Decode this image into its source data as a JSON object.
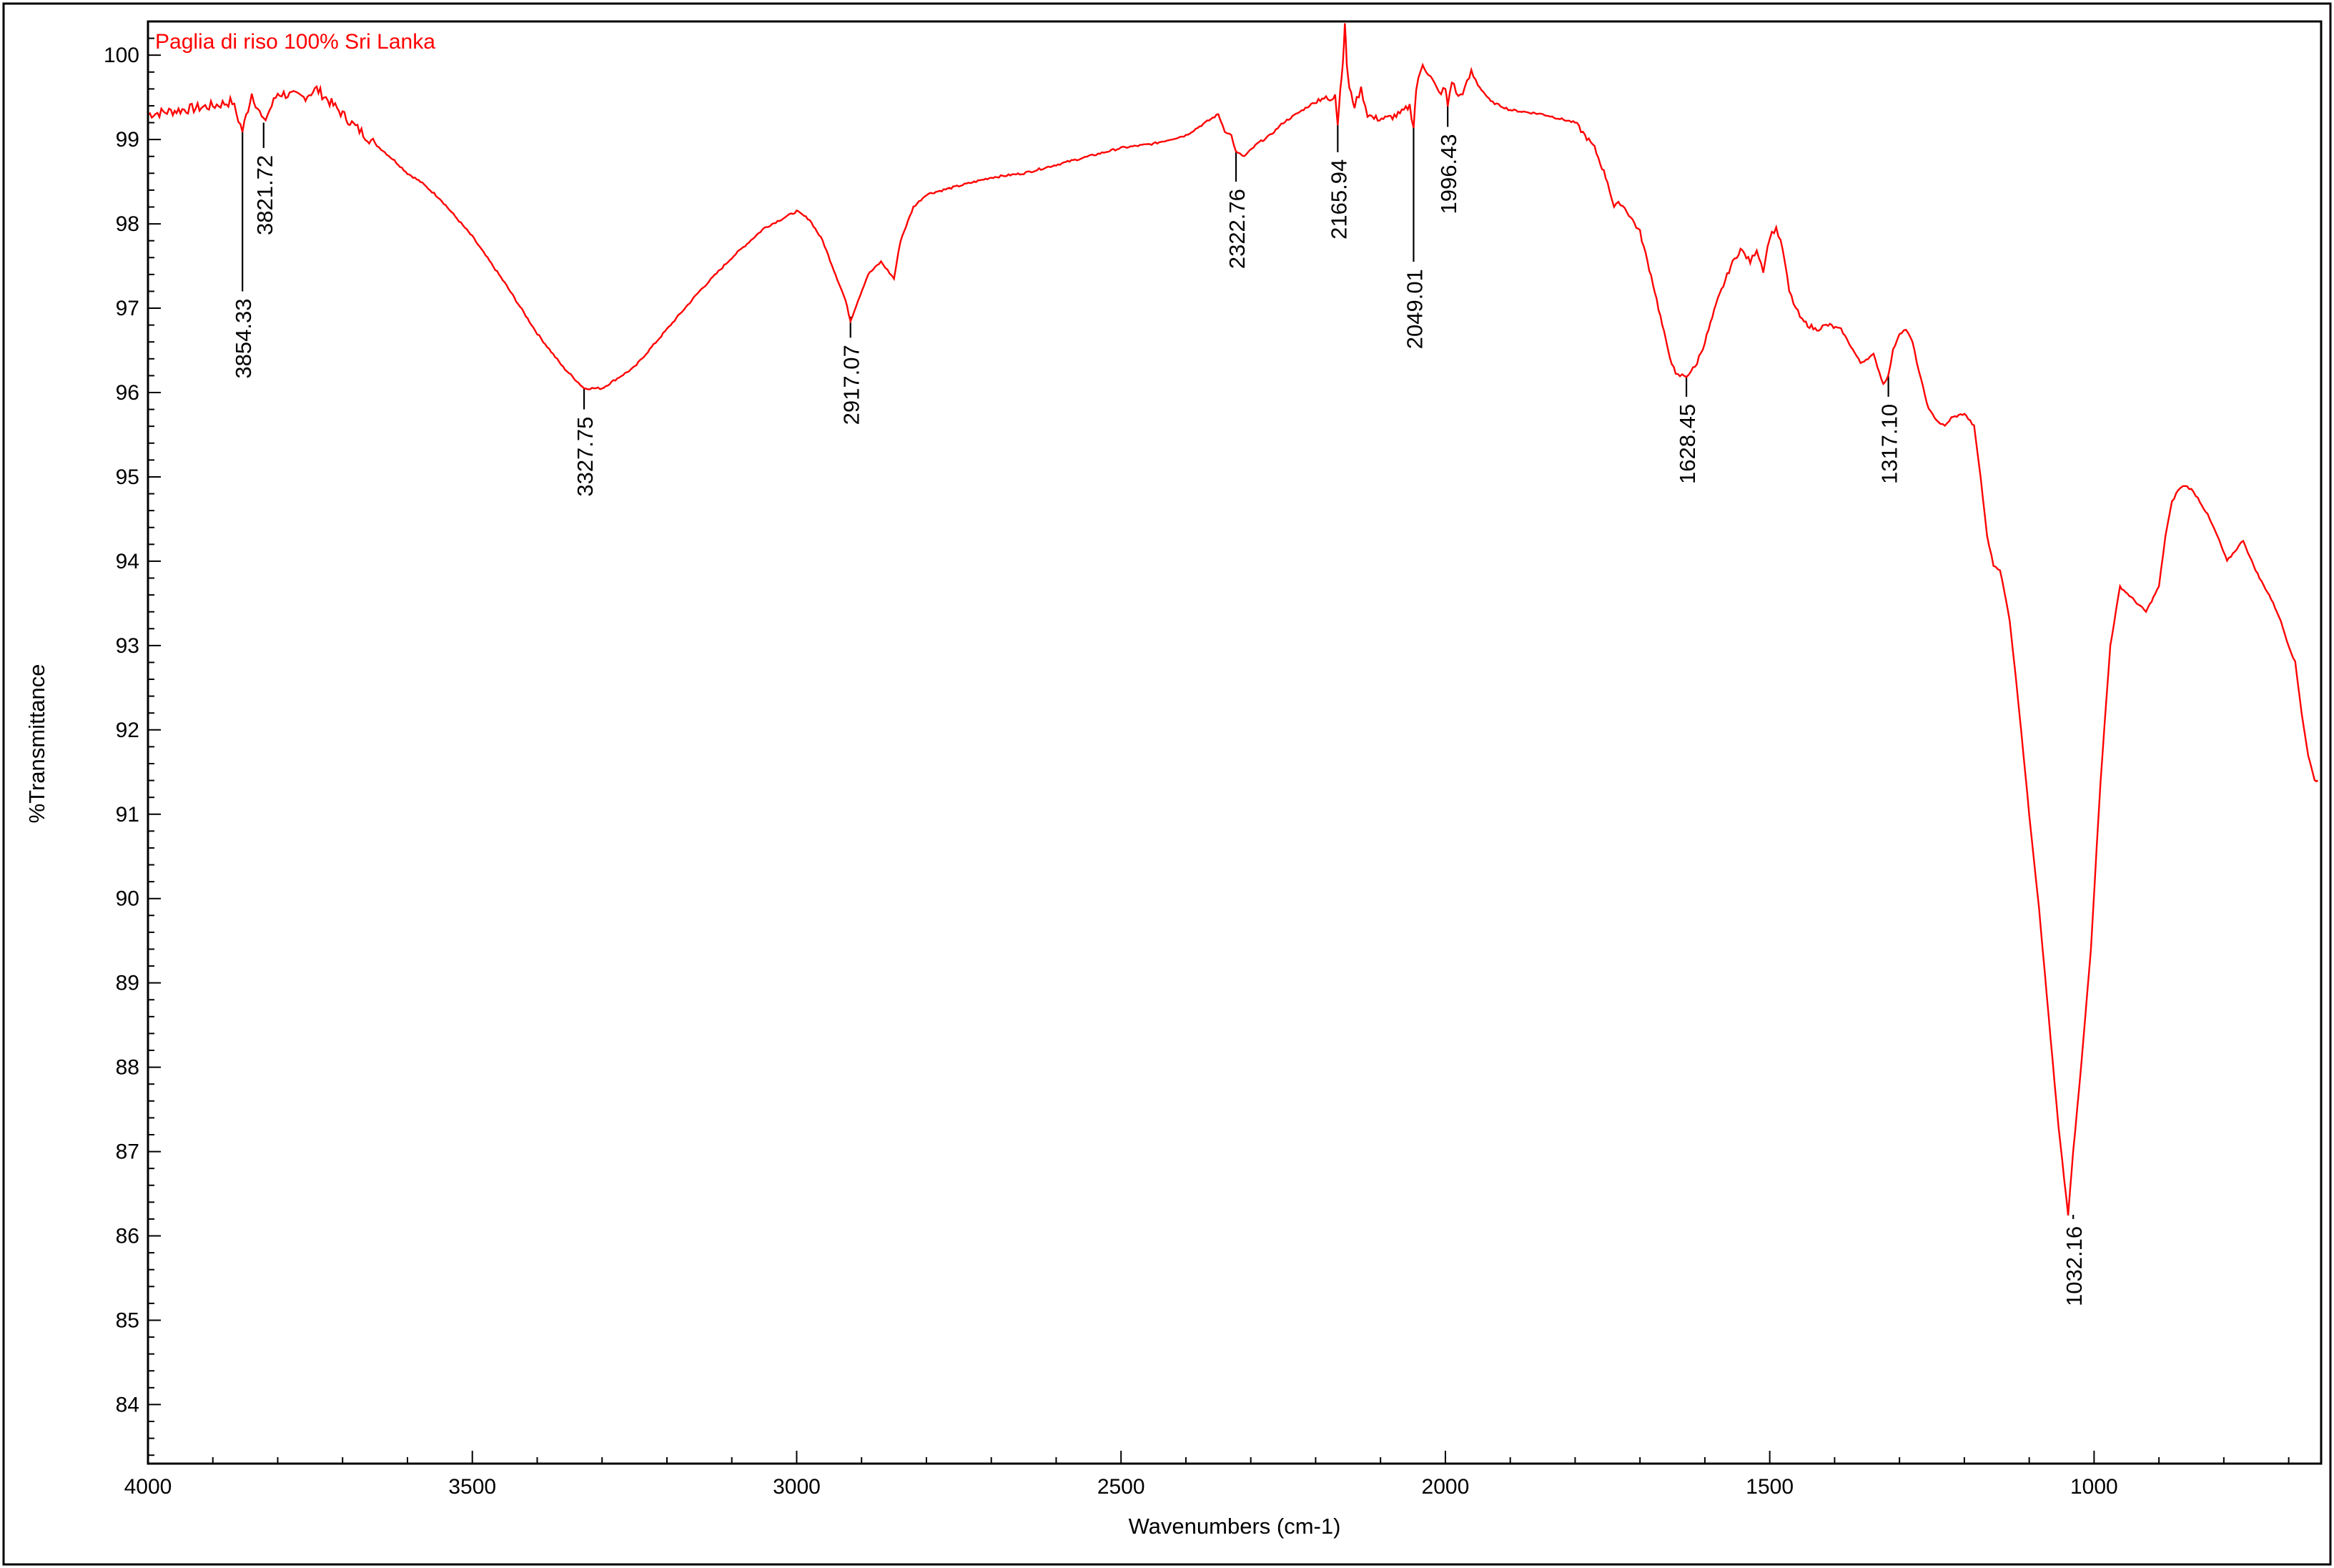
{
  "chart_data": {
    "type": "line",
    "legend": "Paglia di riso 100% Sri Lanka",
    "xlabel": "Wavenumbers (cm-1)",
    "ylabel": "%Transmittance",
    "xlim": [
      4000,
      650
    ],
    "ylim": [
      83.3,
      100.4
    ],
    "x_reversed": true,
    "grid": false,
    "legend_position": "top-left",
    "line_color": "#ff0000",
    "x_ticks": [
      {
        "value": 4000,
        "label": "4000"
      },
      {
        "value": 3500,
        "label": "3500"
      },
      {
        "value": 3000,
        "label": "3000"
      },
      {
        "value": 2500,
        "label": "2500"
      },
      {
        "value": 2000,
        "label": "2000"
      },
      {
        "value": 1500,
        "label": "1500"
      },
      {
        "value": 1000,
        "label": "1000"
      }
    ],
    "y_ticks": [
      {
        "value": 100,
        "label": "100"
      },
      {
        "value": 99,
        "label": "99"
      },
      {
        "value": 98,
        "label": "98"
      },
      {
        "value": 97,
        "label": "97"
      },
      {
        "value": 96,
        "label": "96"
      },
      {
        "value": 95,
        "label": "95"
      },
      {
        "value": 94,
        "label": "94"
      },
      {
        "value": 93,
        "label": "93"
      },
      {
        "value": 92,
        "label": "92"
      },
      {
        "value": 91,
        "label": "91"
      },
      {
        "value": 90,
        "label": "90"
      },
      {
        "value": 89,
        "label": "89"
      },
      {
        "value": 88,
        "label": "88"
      },
      {
        "value": 87,
        "label": "87"
      },
      {
        "value": 86,
        "label": "86"
      },
      {
        "value": 85,
        "label": "85"
      },
      {
        "value": 84,
        "label": "84"
      }
    ],
    "peaks": [
      {
        "x": 3854.33,
        "y": 99.1,
        "label": "3854.33",
        "line_to": 97.2
      },
      {
        "x": 3821.72,
        "y": 99.2,
        "label": "3821.72",
        "line_to": 98.9
      },
      {
        "x": 3327.75,
        "y": 96.05,
        "label": "3327.75",
        "line_to": 95.8
      },
      {
        "x": 2917.07,
        "y": 96.9,
        "label": "2917.07",
        "line_to": 96.65
      },
      {
        "x": 2322.76,
        "y": 98.85,
        "label": "2322.76",
        "line_to": 98.5
      },
      {
        "x": 2165.94,
        "y": 99.2,
        "label": "2165.94",
        "line_to": 98.85
      },
      {
        "x": 2049.01,
        "y": 99.15,
        "label": "2049.01",
        "line_to": 97.55
      },
      {
        "x": 1996.43,
        "y": 99.4,
        "label": "1996.43",
        "line_to": 99.15
      },
      {
        "x": 1628.45,
        "y": 96.2,
        "label": "1628.45",
        "line_to": 95.95
      },
      {
        "x": 1317.1,
        "y": 96.2,
        "label": "1317.10",
        "line_to": 95.95
      },
      {
        "x": 1032.16,
        "y": 86.25,
        "label": "1032.16",
        "line_to": 86.2
      }
    ],
    "series": [
      {
        "x": [
          4000,
          3950,
          3900,
          3870,
          3854.33,
          3840,
          3821.72,
          3800,
          3760,
          3740,
          3720,
          3700,
          3680,
          3650,
          3620,
          3600,
          3580,
          3550,
          3500,
          3450,
          3400,
          3360,
          3327.75,
          3300,
          3250,
          3200,
          3150,
          3100,
          3050,
          3000,
          2980,
          2960,
          2940,
          2925,
          2917.07,
          2905,
          2890,
          2870,
          2860,
          2850,
          2840,
          2820,
          2800,
          2750,
          2700,
          2650,
          2600,
          2550,
          2500,
          2450,
          2400,
          2370,
          2350,
          2340,
          2330,
          2322.76,
          2310,
          2290,
          2270,
          2250,
          2230,
          2210,
          2190,
          2175,
          2170,
          2165.94,
          2162,
          2158,
          2155,
          2152,
          2148,
          2140,
          2130,
          2120,
          2110,
          2090,
          2070,
          2055,
          2049.01,
          2045,
          2035,
          2020,
          2010,
          2000,
          1996.43,
          1990,
          1980,
          1970,
          1960,
          1950,
          1930,
          1900,
          1850,
          1800,
          1770,
          1750,
          1740,
          1730,
          1720,
          1700,
          1680,
          1660,
          1645,
          1635,
          1628.45,
          1615,
          1600,
          1580,
          1560,
          1545,
          1530,
          1520,
          1510,
          1500,
          1490,
          1480,
          1470,
          1460,
          1450,
          1430,
          1410,
          1390,
          1375,
          1360,
          1340,
          1325,
          1317.1,
          1310,
          1300,
          1290,
          1280,
          1270,
          1255,
          1240,
          1230,
          1220,
          1200,
          1185,
          1175,
          1165,
          1155,
          1145,
          1130,
          1115,
          1100,
          1085,
          1070,
          1055,
          1040,
          1032.16,
          1020,
          1005,
          990,
          975,
          960,
          940,
          920,
          900,
          890,
          880,
          870,
          860,
          850,
          840,
          825,
          810,
          795,
          780,
          770,
          760,
          745,
          730,
          715,
          700,
          690,
          680,
          670,
          660,
          655
        ],
        "y": [
          99.3,
          99.35,
          99.4,
          99.45,
          99.1,
          99.55,
          99.2,
          99.55,
          99.5,
          99.6,
          99.45,
          99.3,
          99.15,
          98.95,
          98.75,
          98.6,
          98.5,
          98.3,
          97.85,
          97.3,
          96.7,
          96.3,
          96.05,
          96.05,
          96.3,
          96.75,
          97.2,
          97.6,
          97.95,
          98.15,
          98.05,
          97.8,
          97.4,
          97.1,
          96.85,
          97.1,
          97.4,
          97.55,
          97.45,
          97.35,
          97.8,
          98.2,
          98.35,
          98.45,
          98.55,
          98.6,
          98.7,
          98.8,
          98.9,
          98.95,
          99.05,
          99.2,
          99.3,
          99.1,
          99.05,
          98.85,
          98.8,
          98.95,
          99.05,
          99.2,
          99.3,
          99.4,
          99.5,
          99.45,
          99.55,
          99.2,
          99.6,
          99.9,
          100.4,
          99.9,
          99.6,
          99.4,
          99.6,
          99.3,
          99.25,
          99.25,
          99.3,
          99.4,
          99.15,
          99.6,
          99.9,
          99.7,
          99.55,
          99.6,
          99.4,
          99.7,
          99.5,
          99.6,
          99.8,
          99.65,
          99.45,
          99.35,
          99.3,
          99.2,
          98.9,
          98.5,
          98.2,
          98.25,
          98.15,
          97.9,
          97.3,
          96.6,
          96.2,
          96.2,
          96.2,
          96.3,
          96.6,
          97.1,
          97.5,
          97.7,
          97.55,
          97.7,
          97.45,
          97.85,
          97.95,
          97.7,
          97.2,
          97.0,
          96.85,
          96.75,
          96.8,
          96.75,
          96.55,
          96.35,
          96.45,
          96.1,
          96.2,
          96.5,
          96.7,
          96.75,
          96.6,
          96.25,
          95.8,
          95.65,
          95.6,
          95.7,
          95.75,
          95.6,
          95.0,
          94.3,
          93.95,
          93.9,
          93.3,
          92.2,
          91.0,
          89.9,
          88.6,
          87.3,
          86.25,
          87.0,
          88.0,
          89.4,
          91.4,
          93.0,
          93.7,
          93.55,
          93.4,
          93.7,
          94.3,
          94.7,
          94.85,
          94.9,
          94.85,
          94.75,
          94.55,
          94.3,
          94.0,
          94.15,
          94.25,
          94.05,
          93.8,
          93.6,
          93.35,
          93.0,
          92.8,
          92.2,
          91.7,
          91.4,
          91.4
        ]
      }
    ]
  }
}
